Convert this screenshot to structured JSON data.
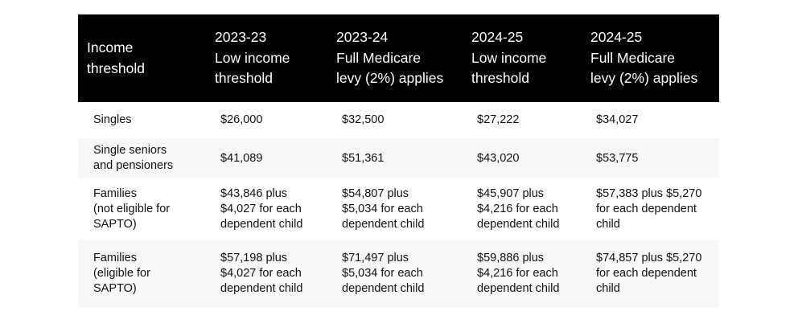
{
  "table": {
    "header": [
      [
        "Income",
        "threshold"
      ],
      [
        "2023-23",
        "Low income",
        "threshold"
      ],
      [
        "2023-24",
        "Full Medicare",
        "levy (2%) applies"
      ],
      [
        "2024-25",
        "Low income",
        "threshold"
      ],
      [
        "2024-25",
        "Full Medicare",
        "levy (2%) applies"
      ]
    ],
    "rows": [
      [
        [
          "Singles"
        ],
        [
          "$26,000"
        ],
        [
          "$32,500"
        ],
        [
          "$27,222"
        ],
        [
          "$34,027"
        ]
      ],
      [
        [
          "Single seniors",
          "and pensioners"
        ],
        [
          "$41,089"
        ],
        [
          "$51,361"
        ],
        [
          "$43,020"
        ],
        [
          "$53,775"
        ]
      ],
      [
        [
          "Families",
          "(not eligible for",
          "SAPTO)"
        ],
        [
          "$43,846 plus",
          "$4,027 for each",
          "dependent child"
        ],
        [
          "$54,807 plus",
          "$5,034 for each",
          "dependent child"
        ],
        [
          "$45,907 plus",
          "$4,216 for each",
          "dependent child"
        ],
        [
          "$57,383 plus $5,270",
          "for each dependent",
          "child"
        ]
      ],
      [
        [
          "Families",
          "(eligible for",
          "SAPTO)"
        ],
        [
          "$57,198 plus",
          "$4,027 for each",
          "dependent child"
        ],
        [
          "$71,497 plus",
          "$5,034 for each",
          "dependent child"
        ],
        [
          "$59,886 plus",
          "$4,216 for each",
          "dependent child"
        ],
        [
          "$74,857 plus $5,270",
          "for each dependent",
          "child"
        ]
      ]
    ]
  }
}
